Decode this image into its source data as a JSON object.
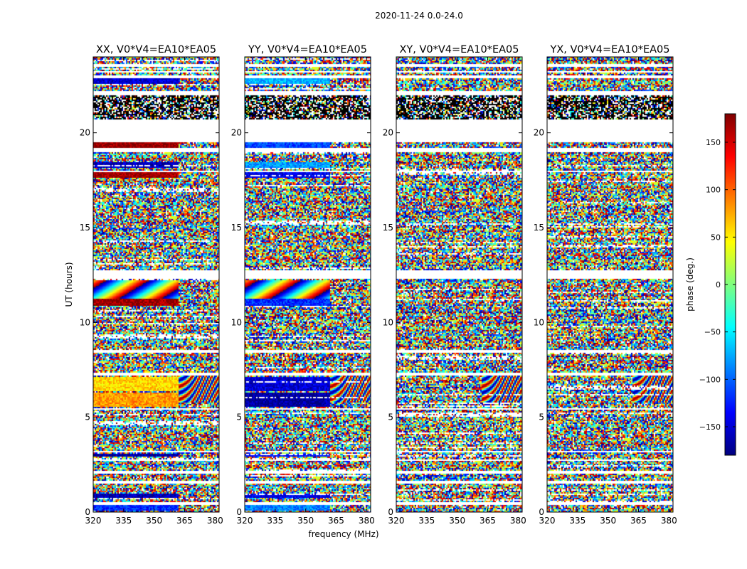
{
  "figure_title": "2020-11-24 0.0-24.0",
  "chart_data": {
    "type": "heatmap",
    "title": "2020-11-24 0.0-24.0",
    "xlabel": "frequency (MHz)",
    "ylabel": "UT (hours)",
    "xlim": [
      320,
      382
    ],
    "ylim": [
      0,
      24
    ],
    "x_ticks": [
      320,
      335,
      350,
      365,
      380
    ],
    "y_ticks": [
      0,
      5,
      10,
      15,
      20
    ],
    "colorbar": {
      "label": "phase (deg.)",
      "range": [
        -180,
        180
      ],
      "ticks": [
        -150,
        -100,
        -50,
        0,
        50,
        100,
        150
      ],
      "colormap": "jet",
      "colors": [
        "#00007f",
        "#0000ff",
        "#007fff",
        "#00ffff",
        "#7fff7f",
        "#ffff00",
        "#ff7f00",
        "#ff0000",
        "#7f0000"
      ]
    },
    "panels": [
      {
        "name": "XX, V0*V4=EA10*EA05",
        "smooth_bands": [
          {
            "t0": 0.1,
            "t1": 0.45,
            "phase": -120
          },
          {
            "t0": 0.8,
            "t1": 1.0,
            "phase": -160
          },
          {
            "t0": 2.95,
            "t1": 3.1,
            "phase": -170
          },
          {
            "t0": 5.6,
            "t1": 6.3,
            "phase": 80
          },
          {
            "t0": 6.4,
            "t1": 7.2,
            "phase": 60
          },
          {
            "t0": 10.9,
            "t1": 11.3,
            "phase": 170
          },
          {
            "t0": 17.7,
            "t1": 17.95,
            "phase": 170
          },
          {
            "t0": 18.2,
            "t1": 18.45,
            "phase": -160
          },
          {
            "t0": 19.25,
            "t1": 19.5,
            "phase": 175
          },
          {
            "t0": 22.6,
            "t1": 22.95,
            "phase": -150
          }
        ]
      },
      {
        "name": "YY, V0*V4=EA10*EA05",
        "smooth_bands": [
          {
            "t0": 0.1,
            "t1": 0.45,
            "phase": -90
          },
          {
            "t0": 0.8,
            "t1": 1.0,
            "phase": -140
          },
          {
            "t0": 2.95,
            "t1": 3.1,
            "phase": -130
          },
          {
            "t0": 5.6,
            "t1": 6.3,
            "phase": -170
          },
          {
            "t0": 6.4,
            "t1": 7.2,
            "phase": -150
          },
          {
            "t0": 10.9,
            "t1": 11.3,
            "phase": -120
          },
          {
            "t0": 17.7,
            "t1": 17.95,
            "phase": -140
          },
          {
            "t0": 18.2,
            "t1": 18.45,
            "phase": -80
          },
          {
            "t0": 19.25,
            "t1": 19.5,
            "phase": -110
          },
          {
            "t0": 22.6,
            "t1": 22.95,
            "phase": -70
          }
        ]
      },
      {
        "name": "XY, V0*V4=EA10*EA05",
        "smooth_bands": []
      },
      {
        "name": "YX, V0*V4=EA10*EA05",
        "smooth_bands": []
      }
    ],
    "blank_intervals": [
      [
        0.45,
        0.55
      ],
      [
        1.55,
        1.7
      ],
      [
        2.1,
        2.2
      ],
      [
        2.75,
        2.85
      ],
      [
        3.15,
        3.25
      ],
      [
        5.4,
        5.5
      ],
      [
        7.25,
        7.4
      ],
      [
        8.45,
        8.6
      ],
      [
        12.35,
        12.75
      ],
      [
        17.95,
        18.05
      ],
      [
        19.0,
        19.2
      ],
      [
        19.55,
        20.2
      ],
      [
        20.2,
        20.7
      ],
      [
        22.05,
        22.2
      ],
      [
        22.95,
        23.05
      ],
      [
        23.2,
        23.3
      ],
      [
        23.5,
        23.65
      ]
    ],
    "dense_dark_interval": [
      20.7,
      22.05
    ]
  }
}
